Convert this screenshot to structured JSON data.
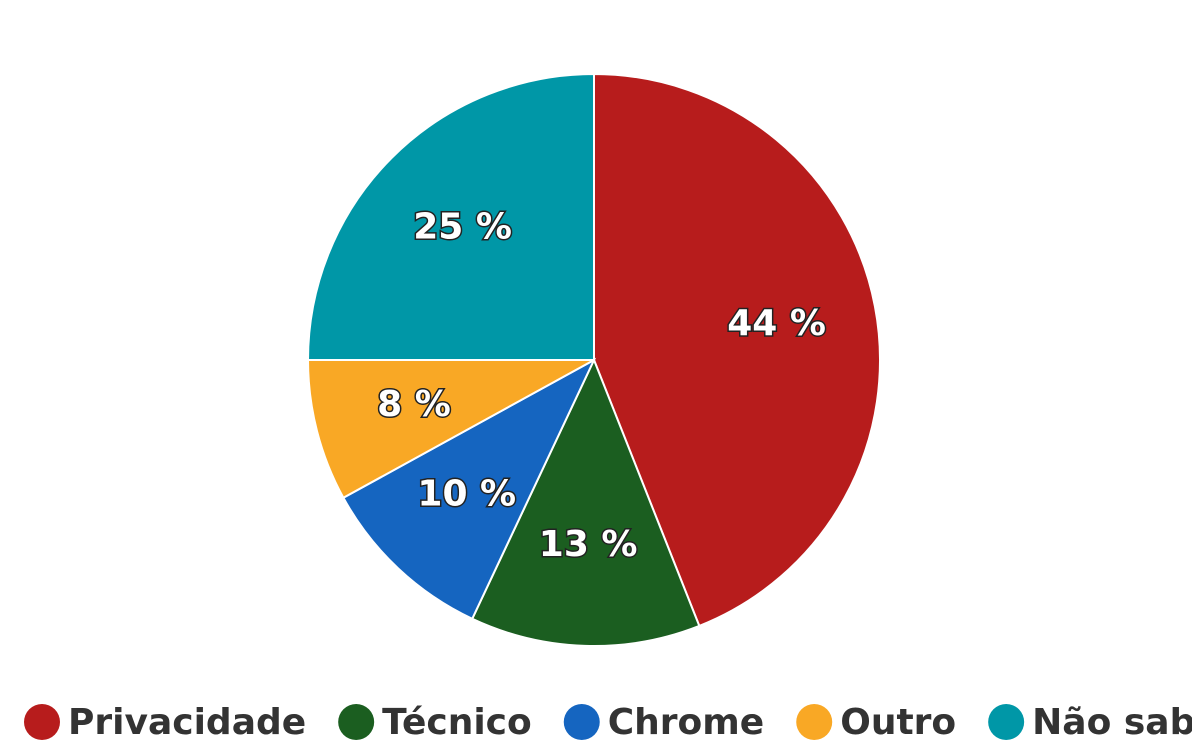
{
  "chart_data": {
    "type": "pie",
    "categories": [
      "Privacidade",
      "Técnico",
      "Chrome",
      "Outro",
      "Não sabe"
    ],
    "values": [
      44,
      13,
      10,
      8,
      25
    ],
    "value_labels": [
      "44 %",
      "13 %",
      "10 %",
      "8 %",
      "25 %"
    ],
    "colors": [
      "#b71c1c",
      "#1b5e20",
      "#1565c0",
      "#f9a825",
      "#0097a7"
    ],
    "legend": "bottom"
  }
}
